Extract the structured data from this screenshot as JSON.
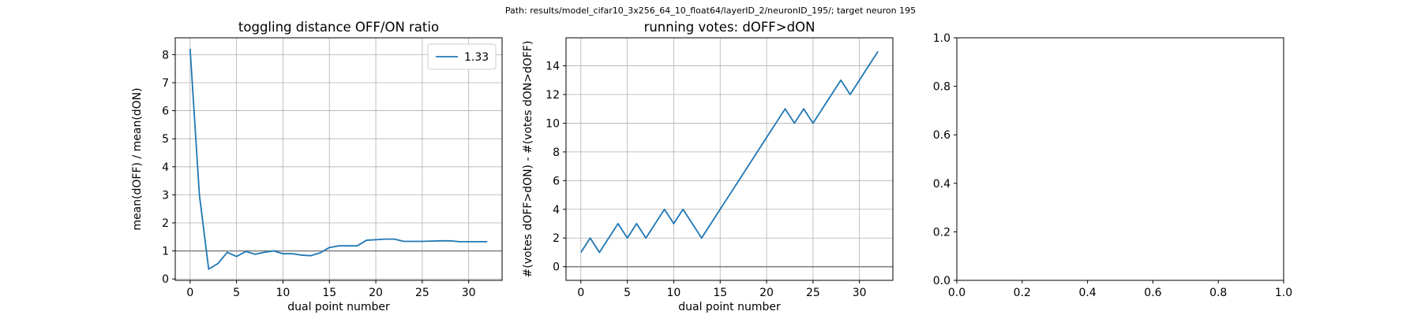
{
  "figure": {
    "suptitle": "Path: results/model_cifar10_3x256_64_10_float64/layerID_2/neuronID_195/; target neuron 195"
  },
  "colors": {
    "series": "#1f77b4",
    "reference_line": "#808080",
    "grid": "#b0b0b0",
    "axes": "#000000",
    "background": "#ffffff"
  },
  "chart_data": [
    {
      "type": "line",
      "title": "toggling distance OFF/ON ratio",
      "xlabel": "dual point number",
      "ylabel": "mean(dOFF) / mean(dON)",
      "xlim": [
        -1.6,
        33.6
      ],
      "ylim": [
        -0.05,
        8.6
      ],
      "xticks": [
        0,
        5,
        10,
        15,
        20,
        25,
        30
      ],
      "yticks": [
        0,
        1,
        2,
        3,
        4,
        5,
        6,
        7,
        8
      ],
      "grid": true,
      "legend": {
        "position": "top-right",
        "entries": [
          "1.33"
        ]
      },
      "reference_line": {
        "y": 1
      },
      "series": [
        {
          "name": "1.33",
          "x": [
            0,
            1,
            2,
            3,
            4,
            5,
            6,
            7,
            8,
            9,
            10,
            11,
            12,
            13,
            14,
            15,
            16,
            17,
            18,
            19,
            20,
            21,
            22,
            23,
            24,
            25,
            26,
            27,
            28,
            29,
            30,
            31,
            32
          ],
          "values": [
            8.2,
            3.0,
            0.35,
            0.55,
            0.95,
            0.8,
            0.98,
            0.88,
            0.95,
            1.0,
            0.9,
            0.9,
            0.85,
            0.83,
            0.93,
            1.12,
            1.18,
            1.18,
            1.18,
            1.38,
            1.4,
            1.42,
            1.42,
            1.34,
            1.34,
            1.34,
            1.35,
            1.36,
            1.36,
            1.33,
            1.33,
            1.33,
            1.33
          ]
        }
      ]
    },
    {
      "type": "line",
      "title": "running votes: dOFF>dON",
      "xlabel": "dual point number",
      "ylabel": "#(votes dOFF>dON) - #(votes dON>dOFF)",
      "xlim": [
        -1.6,
        33.6
      ],
      "ylim": [
        -0.95,
        15.95
      ],
      "xticks": [
        0,
        5,
        10,
        15,
        20,
        25,
        30
      ],
      "yticks": [
        0,
        2,
        4,
        6,
        8,
        10,
        12,
        14
      ],
      "grid": true,
      "reference_line": {
        "y": 0
      },
      "series": [
        {
          "x": [
            0,
            1,
            2,
            3,
            4,
            5,
            6,
            7,
            8,
            9,
            10,
            11,
            12,
            13,
            14,
            15,
            16,
            17,
            18,
            19,
            20,
            21,
            22,
            23,
            24,
            25,
            26,
            27,
            28,
            29,
            30,
            31,
            32
          ],
          "values": [
            1,
            2,
            1,
            2,
            3,
            2,
            3,
            2,
            3,
            4,
            3,
            4,
            3,
            2,
            3,
            4,
            5,
            6,
            7,
            8,
            9,
            10,
            11,
            10,
            11,
            10,
            11,
            12,
            13,
            12,
            13,
            14,
            15
          ]
        }
      ]
    },
    {
      "type": "line",
      "title": "",
      "xlabel": "",
      "ylabel": "",
      "xlim": [
        0,
        1
      ],
      "ylim": [
        0,
        1
      ],
      "xticks": [
        0.0,
        0.2,
        0.4,
        0.6,
        0.8,
        1.0
      ],
      "yticks": [
        0.0,
        0.2,
        0.4,
        0.6,
        0.8,
        1.0
      ],
      "xtick_labels": [
        "0.0",
        "0.2",
        "0.4",
        "0.6",
        "0.8",
        "1.0"
      ],
      "ytick_labels": [
        "0.0",
        "0.2",
        "0.4",
        "0.6",
        "0.8",
        "1.0"
      ],
      "grid": false,
      "series": []
    }
  ]
}
